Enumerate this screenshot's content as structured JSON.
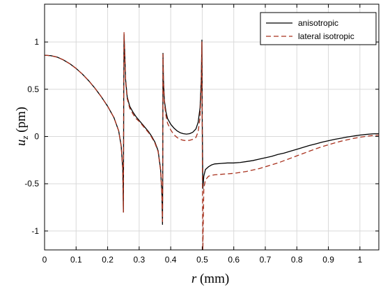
{
  "chart_data": {
    "type": "line",
    "xlabel_var": "r",
    "xlabel_unit": "(mm)",
    "ylabel_var": "u",
    "ylabel_sub": "z",
    "ylabel_unit": "(pm)",
    "xlim": [
      0,
      1.06
    ],
    "ylim": [
      -1.2,
      1.4
    ],
    "grid": true,
    "legend_position": "top-right",
    "xticks": [
      0,
      0.1,
      0.2,
      0.3,
      0.4,
      0.5,
      0.6,
      0.7,
      0.8,
      0.9,
      1
    ],
    "xtick_labels": [
      "0",
      "0.1",
      "0.2",
      "0.3",
      "0.4",
      "0.5",
      "0.6",
      "0.7",
      "0.8",
      "0.9",
      "1"
    ],
    "yticks": [
      1,
      0.5,
      0,
      -0.5,
      -1
    ],
    "ytick_labels": [
      "1",
      "0.5",
      "0",
      "-0.5",
      "-1"
    ],
    "series": [
      {
        "name": "anisotropic",
        "color": "#000000",
        "style": "solid",
        "points": [
          [
            0,
            0.86
          ],
          [
            0.02,
            0.855
          ],
          [
            0.04,
            0.84
          ],
          [
            0.06,
            0.81
          ],
          [
            0.08,
            0.77
          ],
          [
            0.1,
            0.72
          ],
          [
            0.12,
            0.66
          ],
          [
            0.14,
            0.59
          ],
          [
            0.16,
            0.51
          ],
          [
            0.18,
            0.42
          ],
          [
            0.2,
            0.32
          ],
          [
            0.22,
            0.2
          ],
          [
            0.235,
            0.06
          ],
          [
            0.243,
            -0.1
          ],
          [
            0.248,
            -0.35
          ],
          [
            0.25,
            -0.8
          ],
          [
            0.251,
            0.4
          ],
          [
            0.252,
            1.08
          ],
          [
            0.254,
            0.9
          ],
          [
            0.257,
            0.6
          ],
          [
            0.262,
            0.42
          ],
          [
            0.27,
            0.32
          ],
          [
            0.28,
            0.26
          ],
          [
            0.29,
            0.21
          ],
          [
            0.3,
            0.17
          ],
          [
            0.31,
            0.13
          ],
          [
            0.32,
            0.09
          ],
          [
            0.33,
            0.05
          ],
          [
            0.34,
            0.0
          ],
          [
            0.35,
            -0.06
          ],
          [
            0.36,
            -0.15
          ],
          [
            0.368,
            -0.35
          ],
          [
            0.372,
            -0.6
          ],
          [
            0.374,
            -0.93
          ],
          [
            0.375,
            -0.2
          ],
          [
            0.3755,
            0.88
          ],
          [
            0.377,
            0.6
          ],
          [
            0.38,
            0.38
          ],
          [
            0.385,
            0.26
          ],
          [
            0.39,
            0.19
          ],
          [
            0.4,
            0.13
          ],
          [
            0.41,
            0.09
          ],
          [
            0.42,
            0.06
          ],
          [
            0.43,
            0.04
          ],
          [
            0.44,
            0.03
          ],
          [
            0.45,
            0.025
          ],
          [
            0.46,
            0.03
          ],
          [
            0.47,
            0.045
          ],
          [
            0.48,
            0.08
          ],
          [
            0.487,
            0.15
          ],
          [
            0.493,
            0.3
          ],
          [
            0.497,
            0.6
          ],
          [
            0.499,
            1.02
          ],
          [
            0.5,
            0.2
          ],
          [
            0.502,
            -0.55
          ],
          [
            0.505,
            -0.42
          ],
          [
            0.51,
            -0.35
          ],
          [
            0.52,
            -0.32
          ],
          [
            0.53,
            -0.3
          ],
          [
            0.54,
            -0.29
          ],
          [
            0.56,
            -0.285
          ],
          [
            0.58,
            -0.28
          ],
          [
            0.6,
            -0.28
          ],
          [
            0.62,
            -0.275
          ],
          [
            0.64,
            -0.265
          ],
          [
            0.66,
            -0.255
          ],
          [
            0.68,
            -0.24
          ],
          [
            0.7,
            -0.225
          ],
          [
            0.72,
            -0.21
          ],
          [
            0.74,
            -0.19
          ],
          [
            0.76,
            -0.175
          ],
          [
            0.78,
            -0.155
          ],
          [
            0.8,
            -0.135
          ],
          [
            0.82,
            -0.115
          ],
          [
            0.84,
            -0.095
          ],
          [
            0.86,
            -0.078
          ],
          [
            0.88,
            -0.06
          ],
          [
            0.9,
            -0.045
          ],
          [
            0.92,
            -0.03
          ],
          [
            0.94,
            -0.018
          ],
          [
            0.96,
            -0.005
          ],
          [
            0.98,
            0.005
          ],
          [
            1.0,
            0.015
          ],
          [
            1.02,
            0.022
          ],
          [
            1.04,
            0.028
          ],
          [
            1.06,
            0.03
          ]
        ]
      },
      {
        "name": "lateral isotropic",
        "color": "#a8301c",
        "style": "dashed",
        "points": [
          [
            0,
            0.86
          ],
          [
            0.02,
            0.855
          ],
          [
            0.04,
            0.84
          ],
          [
            0.06,
            0.81
          ],
          [
            0.08,
            0.77
          ],
          [
            0.1,
            0.72
          ],
          [
            0.12,
            0.66
          ],
          [
            0.14,
            0.59
          ],
          [
            0.16,
            0.51
          ],
          [
            0.18,
            0.42
          ],
          [
            0.2,
            0.32
          ],
          [
            0.22,
            0.2
          ],
          [
            0.235,
            0.06
          ],
          [
            0.243,
            -0.1
          ],
          [
            0.248,
            -0.35
          ],
          [
            0.25,
            -0.8
          ],
          [
            0.251,
            0.4
          ],
          [
            0.252,
            1.1
          ],
          [
            0.254,
            0.9
          ],
          [
            0.257,
            0.58
          ],
          [
            0.262,
            0.4
          ],
          [
            0.27,
            0.3
          ],
          [
            0.28,
            0.24
          ],
          [
            0.29,
            0.19
          ],
          [
            0.3,
            0.16
          ],
          [
            0.31,
            0.12
          ],
          [
            0.32,
            0.08
          ],
          [
            0.33,
            0.04
          ],
          [
            0.34,
            -0.01
          ],
          [
            0.35,
            -0.07
          ],
          [
            0.36,
            -0.16
          ],
          [
            0.368,
            -0.36
          ],
          [
            0.372,
            -0.6
          ],
          [
            0.374,
            -0.9
          ],
          [
            0.375,
            -0.2
          ],
          [
            0.3755,
            0.87
          ],
          [
            0.377,
            0.58
          ],
          [
            0.38,
            0.35
          ],
          [
            0.385,
            0.22
          ],
          [
            0.39,
            0.14
          ],
          [
            0.4,
            0.07
          ],
          [
            0.41,
            0.02
          ],
          [
            0.42,
            -0.01
          ],
          [
            0.43,
            -0.03
          ],
          [
            0.44,
            -0.04
          ],
          [
            0.45,
            -0.045
          ],
          [
            0.46,
            -0.04
          ],
          [
            0.47,
            -0.03
          ],
          [
            0.48,
            -0.01
          ],
          [
            0.487,
            0.05
          ],
          [
            0.493,
            0.2
          ],
          [
            0.497,
            0.55
          ],
          [
            0.499,
            1.0
          ],
          [
            0.5,
            0.0
          ],
          [
            0.502,
            -1.2
          ],
          [
            0.505,
            -0.55
          ],
          [
            0.51,
            -0.46
          ],
          [
            0.52,
            -0.42
          ],
          [
            0.53,
            -0.41
          ],
          [
            0.54,
            -0.405
          ],
          [
            0.56,
            -0.4
          ],
          [
            0.58,
            -0.395
          ],
          [
            0.6,
            -0.39
          ],
          [
            0.62,
            -0.38
          ],
          [
            0.64,
            -0.37
          ],
          [
            0.66,
            -0.355
          ],
          [
            0.68,
            -0.34
          ],
          [
            0.7,
            -0.32
          ],
          [
            0.72,
            -0.3
          ],
          [
            0.74,
            -0.28
          ],
          [
            0.76,
            -0.255
          ],
          [
            0.78,
            -0.23
          ],
          [
            0.8,
            -0.205
          ],
          [
            0.82,
            -0.18
          ],
          [
            0.84,
            -0.155
          ],
          [
            0.86,
            -0.13
          ],
          [
            0.88,
            -0.108
          ],
          [
            0.9,
            -0.088
          ],
          [
            0.92,
            -0.068
          ],
          [
            0.94,
            -0.05
          ],
          [
            0.96,
            -0.035
          ],
          [
            0.98,
            -0.02
          ],
          [
            1.0,
            -0.008
          ],
          [
            1.02,
            0.002
          ],
          [
            1.04,
            0.01
          ],
          [
            1.06,
            0.015
          ]
        ]
      }
    ]
  }
}
